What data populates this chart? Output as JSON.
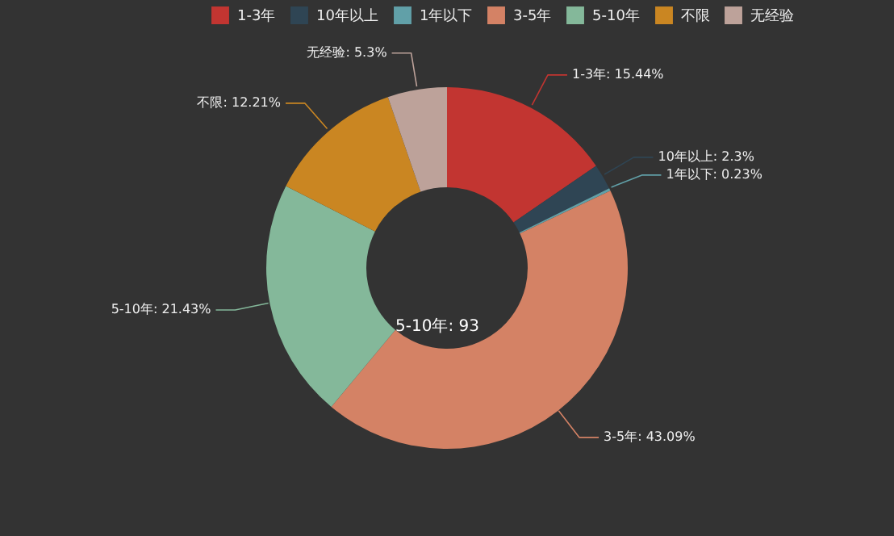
{
  "chart_data": {
    "type": "donut",
    "categories": [
      "1-3年",
      "10年以上",
      "1年以下",
      "3-5年",
      "5-10年",
      "不限",
      "无经验"
    ],
    "values": [
      15.44,
      2.3,
      0.23,
      43.09,
      21.43,
      12.21,
      5.3
    ],
    "colors": [
      "#c23531",
      "#2f4554",
      "#61a0a8",
      "#d48265",
      "#84b89a",
      "#ca8622",
      "#bda29a"
    ],
    "legend": "top",
    "value_labels": [
      ": 15.44%",
      ": 2.3%",
      ": 0.23%",
      ": 43.09%",
      ": 21.43%",
      ": 12.21%",
      ": 5.3%"
    ],
    "annotations": [
      "5-10年: 93"
    ]
  }
}
